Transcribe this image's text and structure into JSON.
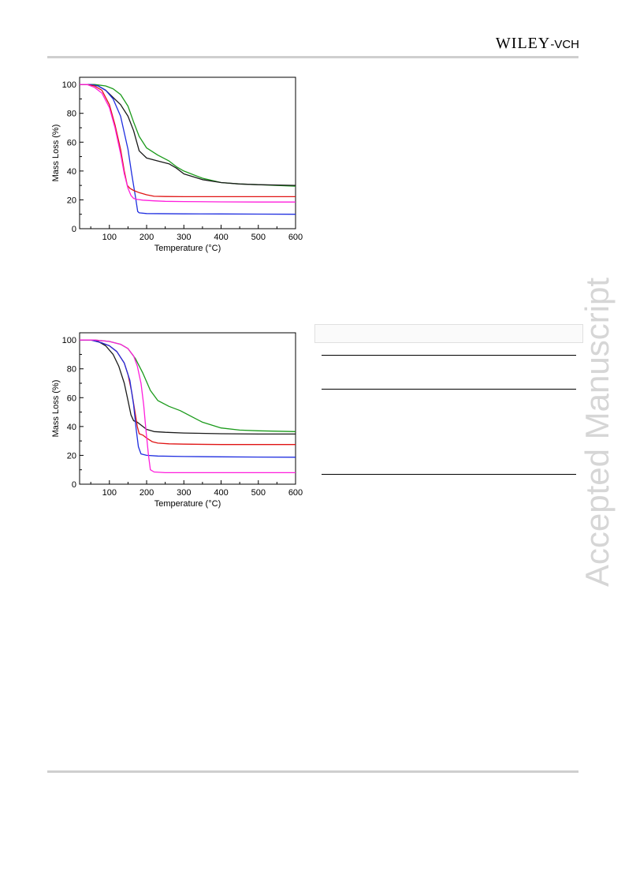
{
  "header": {
    "logo_main": "WILEY",
    "logo_sep": "-",
    "logo_suffix": "VCH"
  },
  "watermark": "Accepted Manuscript",
  "colors": {
    "black": "#1a1a1a",
    "red": "#e01414",
    "blue": "#1f2ee0",
    "green": "#1a9a1a",
    "magenta": "#ff1edc"
  },
  "chart_data": [
    {
      "type": "line",
      "xlabel": "Temperature (°C)",
      "ylabel": "Mass Loss (%)",
      "xlim": [
        20,
        600
      ],
      "ylim": [
        0,
        105
      ],
      "xticks": [
        100,
        200,
        300,
        400,
        500,
        600
      ],
      "yticks": [
        0,
        20,
        40,
        60,
        80,
        100
      ],
      "series": [
        {
          "color": "#1a9a1a",
          "x": [
            20,
            60,
            90,
            110,
            130,
            150,
            165,
            180,
            200,
            230,
            260,
            280,
            300,
            350,
            400,
            450,
            500,
            600
          ],
          "y": [
            100,
            100,
            99,
            97,
            93,
            85,
            74,
            64,
            56,
            51,
            47,
            43,
            40,
            35,
            32,
            31,
            30.5,
            29.5
          ]
        },
        {
          "color": "#1a1a1a",
          "x": [
            20,
            50,
            70,
            90,
            110,
            130,
            150,
            165,
            180,
            200,
            230,
            260,
            280,
            300,
            350,
            400,
            450,
            500,
            600
          ],
          "y": [
            100,
            100,
            99,
            96,
            91,
            86,
            78,
            68,
            54,
            49,
            47,
            45,
            42,
            38,
            34,
            32,
            31,
            30.5,
            30
          ]
        },
        {
          "color": "#1f2ee0",
          "x": [
            20,
            50,
            70,
            90,
            110,
            130,
            150,
            160,
            170,
            176,
            180,
            200,
            300,
            400,
            500,
            600
          ],
          "y": [
            100,
            100,
            99,
            96,
            90,
            78,
            55,
            38,
            22,
            12,
            11,
            10.5,
            10.3,
            10.2,
            10.1,
            10
          ]
        },
        {
          "color": "#e01414",
          "x": [
            20,
            40,
            60,
            80,
            100,
            115,
            130,
            140,
            148,
            155,
            165,
            180,
            200,
            220,
            250,
            300,
            400,
            500,
            600
          ],
          "y": [
            100,
            100,
            99,
            96,
            86,
            72,
            55,
            40,
            30,
            28,
            26.5,
            25,
            23.5,
            22.5,
            22.3,
            22.2,
            22.2,
            22.2,
            22.2
          ]
        },
        {
          "color": "#ff1edc",
          "x": [
            20,
            40,
            60,
            80,
            100,
            115,
            130,
            140,
            150,
            158,
            165,
            175,
            190,
            220,
            250,
            300,
            400,
            500,
            600
          ],
          "y": [
            100,
            100,
            98,
            94,
            84,
            70,
            52,
            38,
            28,
            23,
            21,
            20.3,
            19.8,
            19.3,
            19,
            18.8,
            18.6,
            18.5,
            18.5
          ]
        }
      ]
    },
    {
      "type": "line",
      "xlabel": "Temperature (°C)",
      "ylabel": "Mass Loss (%)",
      "xlim": [
        20,
        600
      ],
      "ylim": [
        0,
        105
      ],
      "xticks": [
        100,
        200,
        300,
        400,
        500,
        600
      ],
      "yticks": [
        0,
        20,
        40,
        60,
        80,
        100
      ],
      "series": [
        {
          "color": "#1a9a1a",
          "x": [
            20,
            60,
            100,
            130,
            150,
            170,
            190,
            210,
            230,
            260,
            290,
            320,
            350,
            400,
            450,
            500,
            600
          ],
          "y": [
            100,
            100,
            99,
            97,
            94,
            87,
            77,
            65,
            58,
            54,
            51,
            47,
            43,
            39,
            37.5,
            37,
            36.5
          ]
        },
        {
          "color": "#1a1a1a",
          "x": [
            20,
            50,
            70,
            90,
            110,
            125,
            140,
            150,
            158,
            165,
            175,
            185,
            200,
            220,
            250,
            300,
            400,
            500,
            600
          ],
          "y": [
            100,
            100,
            99,
            96,
            90,
            82,
            70,
            58,
            48,
            44,
            43,
            41,
            38,
            36.5,
            36,
            35.5,
            35,
            34.8,
            34.8
          ]
        },
        {
          "color": "#e01414",
          "x": [
            20,
            50,
            80,
            100,
            120,
            140,
            150,
            160,
            170,
            175,
            180,
            190,
            200,
            215,
            230,
            260,
            300,
            400,
            500,
            600
          ],
          "y": [
            100,
            100,
            98,
            96,
            92,
            84,
            76,
            64,
            48,
            40,
            35,
            34,
            32,
            29.5,
            28.5,
            28,
            27.8,
            27.5,
            27.5,
            27.5
          ]
        },
        {
          "color": "#1f2ee0",
          "x": [
            20,
            50,
            80,
            100,
            120,
            140,
            155,
            165,
            172,
            178,
            185,
            200,
            230,
            300,
            400,
            500,
            600
          ],
          "y": [
            100,
            100,
            98,
            96,
            92,
            84,
            72,
            55,
            38,
            26,
            21,
            20,
            19.5,
            19.2,
            19,
            18.8,
            18.7
          ]
        },
        {
          "color": "#ff1edc",
          "x": [
            20,
            60,
            100,
            130,
            150,
            165,
            175,
            185,
            192,
            198,
            205,
            210,
            220,
            250,
            300,
            400,
            500,
            600
          ],
          "y": [
            100,
            100,
            99,
            97,
            94,
            89,
            82,
            70,
            55,
            38,
            20,
            10,
            8.5,
            8,
            8,
            8,
            8,
            8
          ]
        }
      ]
    }
  ]
}
